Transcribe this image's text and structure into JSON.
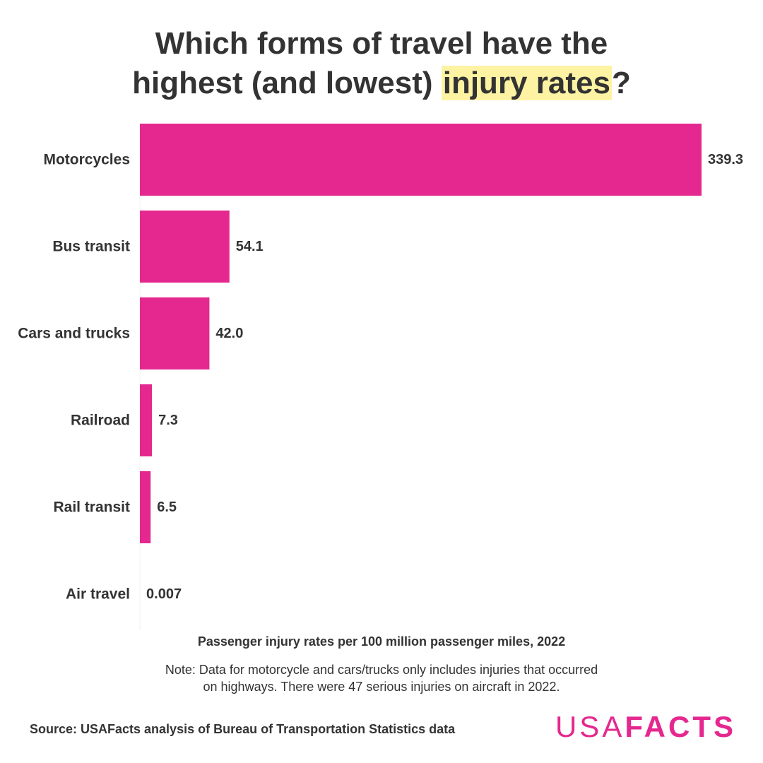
{
  "title": {
    "line1": "Which forms of travel have the",
    "line2_pre": "highest (and lowest) ",
    "line2_highlight": "injury rates",
    "line2_post": "?"
  },
  "colors": {
    "bar": "#e5288f",
    "highlight": "#fdf3a3",
    "text": "#333333",
    "logo": "#e5288f"
  },
  "chart_data": {
    "type": "bar",
    "orientation": "horizontal",
    "categories": [
      "Motorcycles",
      "Bus transit",
      "Cars and trucks",
      "Railroad",
      "Rail transit",
      "Air travel"
    ],
    "values": [
      339.3,
      54.1,
      42.0,
      7.3,
      6.5,
      0.007
    ],
    "value_labels": [
      "339.3",
      "54.1",
      "42.0",
      "7.3",
      "6.5",
      "0.007"
    ],
    "xlabel": "Passenger injury rates per 100 million passenger miles, 2022",
    "xlim": [
      0,
      339.3
    ],
    "grid": false,
    "legend": "none"
  },
  "note": {
    "line1": "Note: Data for motorcycle and cars/trucks only includes injuries that occurred",
    "line2": "on highways. There were 47 serious injuries on aircraft in 2022."
  },
  "source": "Source: USAFacts analysis of Bureau of Transportation Statistics data",
  "logo": {
    "part1": "USA",
    "part2": "FACTS"
  }
}
